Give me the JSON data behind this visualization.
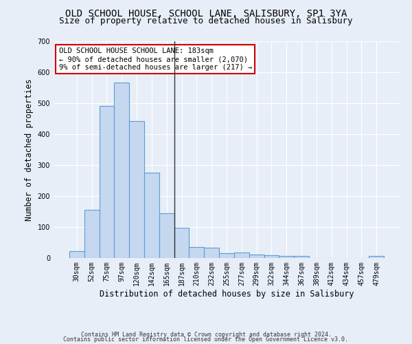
{
  "title": "OLD SCHOOL HOUSE, SCHOOL LANE, SALISBURY, SP1 3YA",
  "subtitle": "Size of property relative to detached houses in Salisbury",
  "xlabel": "Distribution of detached houses by size in Salisbury",
  "ylabel": "Number of detached properties",
  "footnote1": "Contains HM Land Registry data © Crown copyright and database right 2024.",
  "footnote2": "Contains public sector information licensed under the Open Government Licence v3.0.",
  "bar_labels": [
    "30sqm",
    "52sqm",
    "75sqm",
    "97sqm",
    "120sqm",
    "142sqm",
    "165sqm",
    "187sqm",
    "210sqm",
    "232sqm",
    "255sqm",
    "277sqm",
    "299sqm",
    "322sqm",
    "344sqm",
    "367sqm",
    "389sqm",
    "412sqm",
    "434sqm",
    "457sqm",
    "479sqm"
  ],
  "bar_values": [
    23,
    155,
    492,
    567,
    443,
    275,
    145,
    98,
    35,
    33,
    15,
    18,
    12,
    10,
    7,
    7,
    0,
    0,
    0,
    0,
    7
  ],
  "bar_color": "#c5d8f0",
  "bar_edge_color": "#5b9bd5",
  "vline_x": 7,
  "vline_color": "#333333",
  "annotation_text": "OLD SCHOOL HOUSE SCHOOL LANE: 183sqm\n← 90% of detached houses are smaller (2,070)\n9% of semi-detached houses are larger (217) →",
  "annotation_box_color": "#ffffff",
  "annotation_box_edge_color": "#cc0000",
  "ylim": [
    0,
    700
  ],
  "yticks": [
    0,
    100,
    200,
    300,
    400,
    500,
    600,
    700
  ],
  "background_color": "#e8eef7",
  "title_fontsize": 10,
  "subtitle_fontsize": 9,
  "xlabel_fontsize": 8.5,
  "ylabel_fontsize": 8.5,
  "tick_fontsize": 7,
  "annot_fontsize": 7.5,
  "footnote_fontsize": 6
}
